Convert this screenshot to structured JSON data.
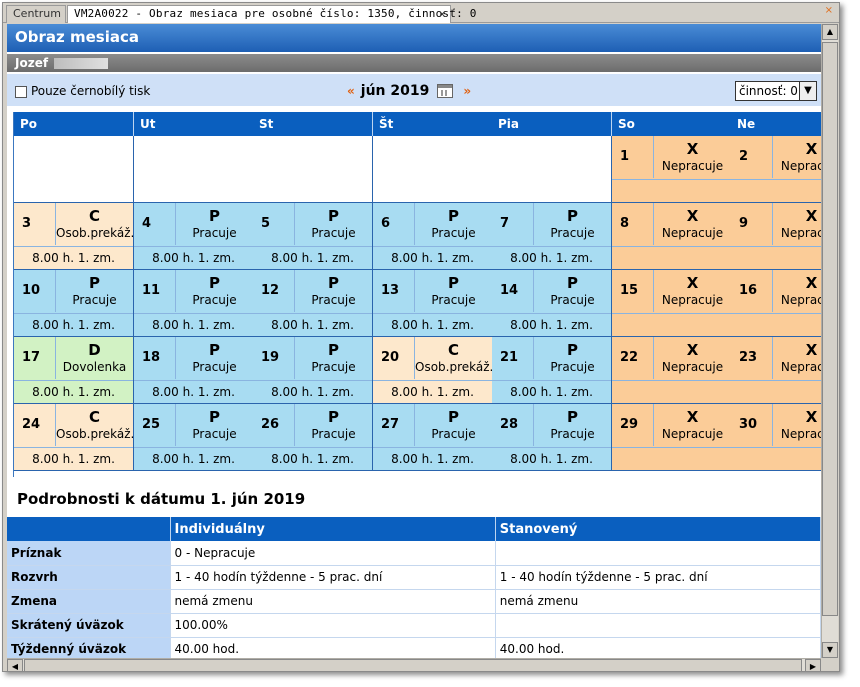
{
  "tabs": [
    {
      "label": "Centrum"
    },
    {
      "label": "VM2A0022 - Obraz mesiaca pre osobné číslo: 1350, činnosť: 0"
    }
  ],
  "icons": {
    "close": "×",
    "pin": "⨯"
  },
  "page": {
    "title": "Obraz mesiaca",
    "user": "Jozef"
  },
  "toolbar": {
    "bw_print_label": "Pouze černobílý tisk",
    "prev": "«",
    "next": "»",
    "month": "jún 2019",
    "activity_select": "činnosť: 0"
  },
  "calendar": {
    "weekdays": [
      "Po",
      "Ut",
      "St",
      "Št",
      "Pia",
      "So",
      "Ne"
    ],
    "weeks": [
      [
        {
          "empty": true
        },
        {
          "empty": true
        },
        {
          "empty": true
        },
        {
          "empty": true
        },
        {
          "empty": true
        },
        {
          "day": "1",
          "code": "X",
          "text": "Nepracuje",
          "hours": "",
          "type": "X"
        },
        {
          "day": "2",
          "code": "X",
          "text": "Nepracuje",
          "hours": "",
          "type": "X"
        }
      ],
      [
        {
          "day": "3",
          "code": "C",
          "text": "Osob.prekáž.",
          "hours": "8.00 h.   1. zm.",
          "type": "C"
        },
        {
          "day": "4",
          "code": "P",
          "text": "Pracuje",
          "hours": "8.00 h.   1. zm.",
          "type": "P"
        },
        {
          "day": "5",
          "code": "P",
          "text": "Pracuje",
          "hours": "8.00 h.   1. zm.",
          "type": "P"
        },
        {
          "day": "6",
          "code": "P",
          "text": "Pracuje",
          "hours": "8.00 h.   1. zm.",
          "type": "P"
        },
        {
          "day": "7",
          "code": "P",
          "text": "Pracuje",
          "hours": "8.00 h.   1. zm.",
          "type": "P"
        },
        {
          "day": "8",
          "code": "X",
          "text": "Nepracuje",
          "hours": "",
          "type": "X"
        },
        {
          "day": "9",
          "code": "X",
          "text": "Nepracuje",
          "hours": "",
          "type": "X"
        }
      ],
      [
        {
          "day": "10",
          "code": "P",
          "text": "Pracuje",
          "hours": "8.00 h.   1. zm.",
          "type": "P"
        },
        {
          "day": "11",
          "code": "P",
          "text": "Pracuje",
          "hours": "8.00 h.   1. zm.",
          "type": "P"
        },
        {
          "day": "12",
          "code": "P",
          "text": "Pracuje",
          "hours": "8.00 h.   1. zm.",
          "type": "P"
        },
        {
          "day": "13",
          "code": "P",
          "text": "Pracuje",
          "hours": "8.00 h.   1. zm.",
          "type": "P"
        },
        {
          "day": "14",
          "code": "P",
          "text": "Pracuje",
          "hours": "8.00 h.   1. zm.",
          "type": "P"
        },
        {
          "day": "15",
          "code": "X",
          "text": "Nepracuje",
          "hours": "",
          "type": "X"
        },
        {
          "day": "16",
          "code": "X",
          "text": "Nepracuje",
          "hours": "",
          "type": "X"
        }
      ],
      [
        {
          "day": "17",
          "code": "D",
          "text": "Dovolenka",
          "hours": "8.00 h.   1. zm.",
          "type": "D"
        },
        {
          "day": "18",
          "code": "P",
          "text": "Pracuje",
          "hours": "8.00 h.   1. zm.",
          "type": "P"
        },
        {
          "day": "19",
          "code": "P",
          "text": "Pracuje",
          "hours": "8.00 h.   1. zm.",
          "type": "P"
        },
        {
          "day": "20",
          "code": "C",
          "text": "Osob.prekáž.",
          "hours": "8.00 h.   1. zm.",
          "type": "C"
        },
        {
          "day": "21",
          "code": "P",
          "text": "Pracuje",
          "hours": "8.00 h.   1. zm.",
          "type": "P"
        },
        {
          "day": "22",
          "code": "X",
          "text": "Nepracuje",
          "hours": "",
          "type": "X"
        },
        {
          "day": "23",
          "code": "X",
          "text": "Nepracuje",
          "hours": "",
          "type": "X"
        }
      ],
      [
        {
          "day": "24",
          "code": "C",
          "text": "Osob.prekáž.",
          "hours": "8.00 h.   1. zm.",
          "type": "C"
        },
        {
          "day": "25",
          "code": "P",
          "text": "Pracuje",
          "hours": "8.00 h.   1. zm.",
          "type": "P"
        },
        {
          "day": "26",
          "code": "P",
          "text": "Pracuje",
          "hours": "8.00 h.   1. zm.",
          "type": "P"
        },
        {
          "day": "27",
          "code": "P",
          "text": "Pracuje",
          "hours": "8.00 h.   1. zm.",
          "type": "P"
        },
        {
          "day": "28",
          "code": "P",
          "text": "Pracuje",
          "hours": "8.00 h.   1. zm.",
          "type": "P"
        },
        {
          "day": "29",
          "code": "X",
          "text": "Nepracuje",
          "hours": "",
          "type": "X"
        },
        {
          "day": "30",
          "code": "X",
          "text": "Nepracuje",
          "hours": "",
          "type": "X"
        }
      ]
    ]
  },
  "details": {
    "title": "Podrobnosti k dátumu  1. jún 2019",
    "headers": [
      "Individuálny",
      "Stanovený"
    ],
    "rows": [
      {
        "label": "Príznak",
        "individual": "0 - Nepracuje",
        "standard": ""
      },
      {
        "label": "Rozvrh",
        "individual": "1 - 40 hodín týždenne - 5 prac. dní",
        "standard": "1 - 40 hodín týždenne - 5 prac. dní"
      },
      {
        "label": "Zmena",
        "individual": "nemá zmenu",
        "standard": "nemá zmenu"
      },
      {
        "label": "Skrátený úväzok",
        "individual": "100.00%",
        "standard": ""
      },
      {
        "label": "Týždenný úväzok",
        "individual": "40.00 hod.",
        "standard": "40.00 hod."
      }
    ]
  },
  "colors": {
    "header_blue": "#0a5fbf",
    "working": "#a8dcf2",
    "not_working": "#fbcc98",
    "personal_obstacle": "#fde8cc",
    "vacation": "#d2f2c4"
  }
}
